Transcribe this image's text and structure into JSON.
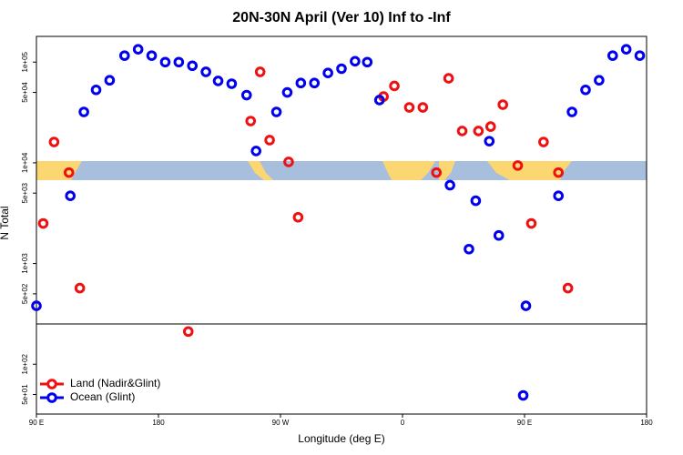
{
  "chart_data": {
    "type": "scatter",
    "title": "20N-30N April (Ver 10)   Inf to -Inf",
    "x_label": "Longitude (deg E)",
    "y_label": "N Total",
    "xlim": [
      90,
      540
    ],
    "ylim": [
      32,
      180000
    ],
    "log_y": true,
    "legend": "bottom left",
    "xticks": [
      {
        "value": 90,
        "label": "90 E"
      },
      {
        "value": 180,
        "label": "180"
      },
      {
        "value": 270,
        "label": "90 W"
      },
      {
        "value": 360,
        "label": "0"
      },
      {
        "value": 450,
        "label": "90 E"
      },
      {
        "value": 540,
        "label": "180"
      }
    ],
    "yticks": [
      {
        "value": 50,
        "label": "5e+01"
      },
      {
        "value": 100,
        "label": "1e+02"
      },
      {
        "value": 500,
        "label": "5e+02"
      },
      {
        "value": 1000,
        "label": "1e+03"
      },
      {
        "value": 5000,
        "label": "5e+03"
      },
      {
        "value": 10000,
        "label": "1e+04"
      },
      {
        "value": 50000,
        "label": "5e+04"
      },
      {
        "value": 100000,
        "label": "1e+05"
      }
    ],
    "series": [
      {
        "name": "Land (Nadir&Glint)",
        "color": "#ee1111",
        "x": [
          95,
          103,
          114,
          122,
          202,
          248,
          255,
          262,
          276,
          283,
          346,
          354,
          365,
          375,
          385,
          394,
          404,
          416,
          425,
          434,
          445,
          455,
          464,
          475,
          482
        ],
        "values": [
          2500,
          16100,
          8000,
          570,
          211,
          26000,
          80000,
          16800,
          10200,
          2880,
          45500,
          58000,
          35500,
          35500,
          8000,
          69000,
          20700,
          20700,
          22900,
          37800,
          9400,
          2500,
          16100,
          8000,
          570
        ]
      },
      {
        "name": "Ocean (Glint)",
        "color": "#0000ee",
        "x": [
          90,
          115,
          125,
          134,
          144,
          155,
          165,
          175,
          185,
          195,
          205,
          215,
          224,
          234,
          245,
          252,
          267,
          275,
          285,
          295,
          305,
          315,
          325,
          334,
          343,
          395,
          409,
          414,
          424,
          431,
          451,
          449,
          475,
          485,
          495,
          505,
          515,
          525,
          535
        ],
        "values": [
          380,
          4700,
          32000,
          53000,
          66000,
          116000,
          134000,
          116000,
          100000,
          100000,
          92000,
          80000,
          65000,
          61000,
          47000,
          13100,
          32000,
          50000,
          62000,
          62000,
          78000,
          86000,
          102000,
          100000,
          42000,
          6000,
          1390,
          4200,
          16400,
          1900,
          380,
          49,
          4700,
          32000,
          53000,
          66000,
          116000,
          134000,
          116000
        ]
      }
    ]
  }
}
